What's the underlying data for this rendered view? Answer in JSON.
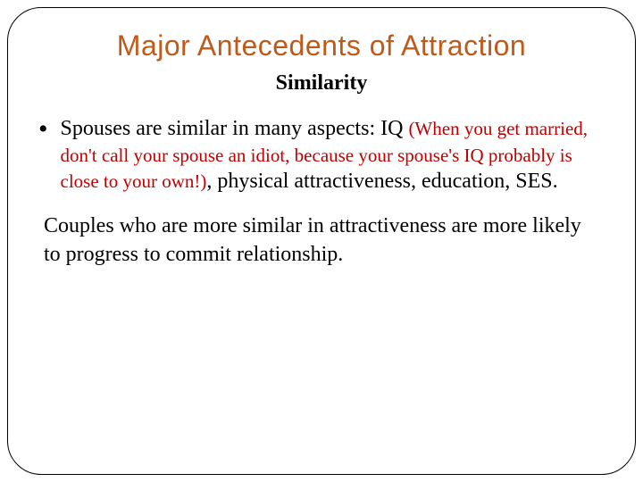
{
  "slide": {
    "title": "Major Antecedents of Attraction",
    "title_color": "#c05a1a",
    "title_fontsize": 32,
    "subtitle": "Similarity",
    "subtitle_fontsize": 24,
    "bullet": {
      "lead": "Spouses are similar in many aspects: IQ ",
      "highlight": "(When you get married, don't call your spouse an idiot, because your spouse's IQ probably is close to your own!)",
      "highlight_color": "#c00000",
      "tail": ", physical attractiveness, education, SES.",
      "fontsize_main": 24,
      "fontsize_highlight": 21
    },
    "paragraph": " Couples who are more similar in attractiveness are more likely to progress to commit relationship.",
    "paragraph_fontsize": 24,
    "frame": {
      "border_color": "#000000",
      "border_radius": 38,
      "background": "#ffffff"
    }
  }
}
